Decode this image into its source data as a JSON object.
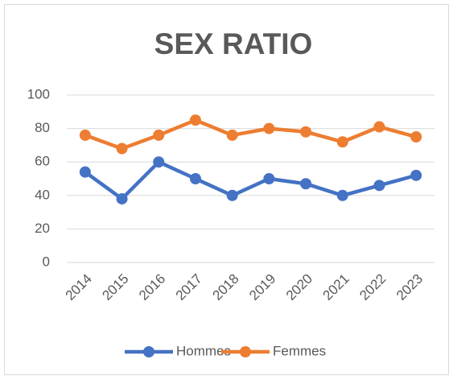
{
  "chart_data": {
    "type": "line",
    "title": "SEX RATIO",
    "categories": [
      "2014",
      "2015",
      "2016",
      "2017",
      "2018",
      "2019",
      "2020",
      "2021",
      "2022",
      "2023"
    ],
    "series": [
      {
        "name": "Hommes",
        "color": "#4472c4",
        "values": [
          54,
          38,
          60,
          50,
          40,
          50,
          47,
          40,
          46,
          52
        ]
      },
      {
        "name": "Femmes",
        "color": "#ed7d31",
        "values": [
          76,
          68,
          76,
          85,
          76,
          80,
          78,
          72,
          81,
          75
        ]
      }
    ],
    "ylim": [
      0,
      100
    ],
    "yticks": [
      0,
      20,
      40,
      60,
      80,
      100
    ],
    "grid": true,
    "legend": "bottom"
  }
}
